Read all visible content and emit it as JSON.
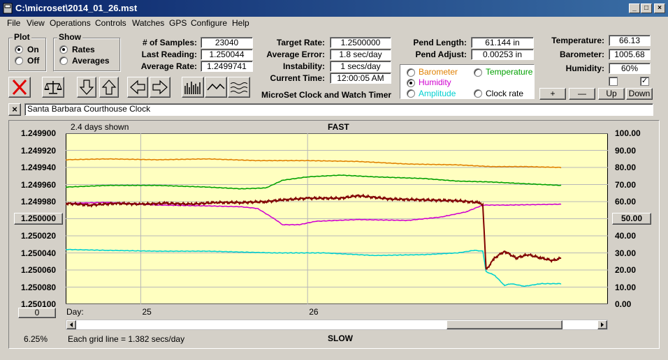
{
  "window": {
    "title": "C:\\microset\\2014_01_26.mst",
    "minimize": "_",
    "maximize": "□",
    "close": "×"
  },
  "menu": [
    "File",
    "View",
    "Operations",
    "Controls",
    "Watches",
    "GPS",
    "Configure",
    "Help"
  ],
  "plot_group": {
    "title": "Plot",
    "on": "On",
    "off": "Off",
    "selected": "on"
  },
  "show_group": {
    "title": "Show",
    "rates": "Rates",
    "averages": "Averages",
    "selected": "rates"
  },
  "stats": {
    "samples_label": "# of Samples:",
    "samples": "23040",
    "last_label": "Last Reading:",
    "last": "1.250044",
    "avg_rate_label": "Average Rate:",
    "avg_rate": "1.2499741"
  },
  "rates": {
    "target_label": "Target Rate:",
    "target": "1.2500000",
    "avg_err_label": "Average Error:",
    "avg_err": "1.8 sec/day",
    "instab_label": "Instability:",
    "instab": "1 secs/day",
    "time_label": "Current Time:",
    "time": "12:00:05 AM"
  },
  "app_name": "MicroSet Clock and Watch Timer",
  "pendulum": {
    "length_label": "Pend Length:",
    "length": "61.144 in",
    "adjust_label": "Pend Adjust:",
    "adjust": "0.00253 in"
  },
  "env": {
    "temp_label": "Temperature:",
    "temp": "66.13",
    "baro_label": "Barometer:",
    "baro": "1005.68",
    "hum_label": "Humidity:",
    "hum": "60%"
  },
  "aux_options": {
    "barometer": "Barometer",
    "temperature": "Temperature",
    "humidity": "Humidity",
    "amplitude": "Amplitude",
    "clock_rate": "Clock rate",
    "selected": "humidity",
    "colors": {
      "barometer": "#e08000",
      "temperature": "#00a000",
      "humidity": "#d000d0",
      "amplitude": "#00d0d0",
      "clock_rate": "#000000"
    }
  },
  "aux_buttons": {
    "plus": "+",
    "minus": "—",
    "up": "Up",
    "down": "Down"
  },
  "watch_name": "Santa Barbara Courthouse Clock",
  "close_x": "×",
  "chart": {
    "days_shown": "2.4 days shown",
    "top_label": "FAST",
    "bottom_label": "SLOW",
    "center_button": "1.250000",
    "right_center_button": "50.00",
    "left_bottom_button": "0",
    "day_label": "Day:",
    "percent": "6.25%",
    "grid_note": "Each grid line = 1.382 secs/day"
  },
  "chart_data": {
    "type": "line",
    "y_left_ticks": [
      "1.249900",
      "1.249920",
      "1.249940",
      "1.249960",
      "1.249980",
      "1.250000",
      "1.250020",
      "1.250040",
      "1.250060",
      "1.250080",
      "1.250100"
    ],
    "y_right_ticks": [
      "100.00",
      "90.00",
      "80.00",
      "70.00",
      "60.00",
      "50.00",
      "40.00",
      "30.00",
      "20.00",
      "10.00",
      "0.00"
    ],
    "x_ticks": [
      {
        "day": 25,
        "label": "25"
      },
      {
        "day": 26,
        "label": "26"
      }
    ],
    "xlim": [
      24.55,
      27.8
    ],
    "ylim_left": [
      1.2499,
      1.2501
    ],
    "ylim_right": [
      0,
      100
    ],
    "series": [
      {
        "color": "#e08000",
        "axis": "right",
        "points": [
          [
            24.55,
            84.5
          ],
          [
            24.8,
            85
          ],
          [
            25.1,
            84.5
          ],
          [
            25.4,
            85
          ],
          [
            25.7,
            84
          ],
          [
            26.0,
            84
          ],
          [
            26.3,
            83.5
          ],
          [
            26.6,
            82
          ],
          [
            26.9,
            81.5
          ],
          [
            27.1,
            80.5
          ],
          [
            27.3,
            80.5
          ],
          [
            27.52,
            80
          ]
        ]
      },
      {
        "color": "#00a000",
        "axis": "right",
        "points": [
          [
            24.55,
            68.5
          ],
          [
            24.8,
            69.5
          ],
          [
            25.1,
            69.5
          ],
          [
            25.4,
            68.5
          ],
          [
            25.6,
            67.5
          ],
          [
            25.75,
            68
          ],
          [
            25.85,
            72.5
          ],
          [
            26.0,
            74.5
          ],
          [
            26.2,
            75.5
          ],
          [
            26.4,
            74.5
          ],
          [
            26.7,
            73.5
          ],
          [
            26.9,
            72
          ],
          [
            27.1,
            71.5
          ],
          [
            27.3,
            70.5
          ],
          [
            27.52,
            69.5
          ]
        ]
      },
      {
        "color": "#d000d0",
        "axis": "right",
        "points": [
          [
            24.55,
            59
          ],
          [
            24.8,
            59.5
          ],
          [
            25.1,
            58
          ],
          [
            25.4,
            57.5
          ],
          [
            25.6,
            57
          ],
          [
            25.7,
            56
          ],
          [
            25.8,
            50
          ],
          [
            25.85,
            46.5
          ],
          [
            25.95,
            46.5
          ],
          [
            26.05,
            48.5
          ],
          [
            26.3,
            49.5
          ],
          [
            26.6,
            49
          ],
          [
            26.8,
            51
          ],
          [
            26.95,
            54
          ],
          [
            27.05,
            58
          ],
          [
            27.2,
            58
          ],
          [
            27.52,
            58.5
          ]
        ]
      },
      {
        "color": "#00d0d0",
        "axis": "right",
        "points": [
          [
            24.55,
            32
          ],
          [
            24.8,
            31.5
          ],
          [
            25.1,
            31
          ],
          [
            25.4,
            31
          ],
          [
            25.6,
            30.5
          ],
          [
            25.8,
            30
          ],
          [
            26.1,
            30
          ],
          [
            26.4,
            28.5
          ],
          [
            26.7,
            29
          ],
          [
            26.9,
            30
          ],
          [
            27.0,
            31.5
          ],
          [
            27.05,
            31
          ],
          [
            27.07,
            19
          ],
          [
            27.12,
            17
          ],
          [
            27.18,
            11
          ],
          [
            27.22,
            12
          ],
          [
            27.3,
            10.5
          ],
          [
            27.4,
            12
          ],
          [
            27.52,
            12
          ]
        ]
      },
      {
        "color": "#800000",
        "axis": "right",
        "width": 2,
        "points": [
          [
            24.55,
            59
          ],
          [
            24.7,
            58
          ],
          [
            24.85,
            59
          ],
          [
            25.0,
            58.5
          ],
          [
            25.15,
            59
          ],
          [
            25.3,
            58.5
          ],
          [
            25.45,
            59.5
          ],
          [
            25.6,
            59.5
          ],
          [
            25.75,
            60
          ],
          [
            25.85,
            61
          ],
          [
            26.0,
            62
          ],
          [
            26.2,
            62
          ],
          [
            26.3,
            63.5
          ],
          [
            26.5,
            61.5
          ],
          [
            26.7,
            61
          ],
          [
            26.9,
            60.5
          ],
          [
            27.02,
            59.5
          ],
          [
            27.05,
            58
          ],
          [
            27.07,
            20
          ],
          [
            27.12,
            27
          ],
          [
            27.18,
            31
          ],
          [
            27.25,
            27
          ],
          [
            27.32,
            29
          ],
          [
            27.4,
            27
          ],
          [
            27.47,
            25.5
          ],
          [
            27.52,
            27
          ]
        ]
      }
    ]
  }
}
